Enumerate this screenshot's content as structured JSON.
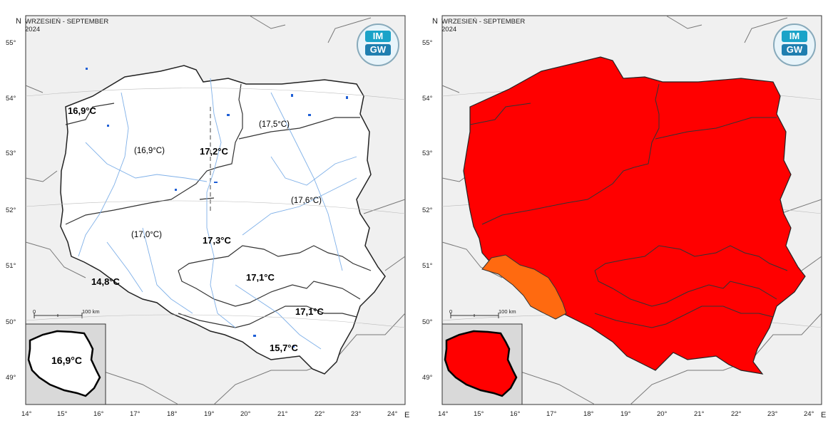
{
  "header": {
    "title": "WRZESIEŃ - SEPTEMBER",
    "year": "2024"
  },
  "north_label": "N",
  "east_label": "E",
  "logo": {
    "line1": "IM",
    "line2": "GW"
  },
  "lat_ticks": [
    "55°",
    "54°",
    "53°",
    "52°",
    "51°",
    "50°",
    "49°"
  ],
  "lon_ticks": [
    "14°",
    "15°",
    "16°",
    "17°",
    "18°",
    "19°",
    "20°",
    "21°",
    "22°",
    "23°",
    "24°"
  ],
  "scale": {
    "start": "0",
    "end": "100 km"
  },
  "left_map": {
    "regions": [
      {
        "label": "16,9°C",
        "style": "bold"
      },
      {
        "label": "(17,5°C)",
        "style": "normal"
      },
      {
        "label": "(16,9°C)",
        "style": "normal"
      },
      {
        "label": "17,2°C",
        "style": "bold"
      },
      {
        "label": "(17,6°C)",
        "style": "normal"
      },
      {
        "label": "(17,0°C)",
        "style": "normal"
      },
      {
        "label": "17,3°C",
        "style": "bold"
      },
      {
        "label": "17,1°C",
        "style": "bold"
      },
      {
        "label": "14,8°C",
        "style": "bold"
      },
      {
        "label": "17,1°C",
        "style": "bold"
      },
      {
        "label": "15,7°C",
        "style": "bold"
      }
    ],
    "inset_label": "16,9°C"
  },
  "right_map": {
    "category_colors": {
      "main": "#ff0000",
      "southwest": "#ff6a10"
    }
  },
  "colors": {
    "rivers": "#7fb0e8",
    "lakes": "#1f5fd6",
    "borders": "#555555"
  }
}
